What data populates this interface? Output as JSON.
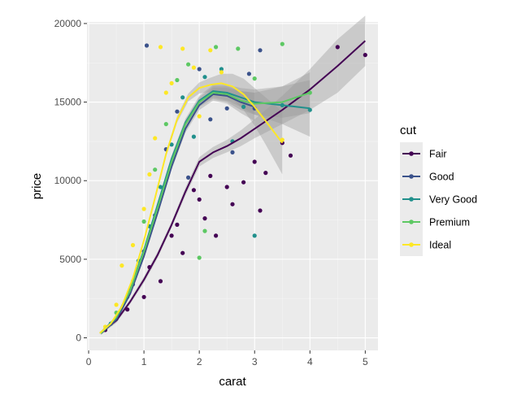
{
  "chart_data": {
    "type": "scatter",
    "title": "",
    "xlabel": "carat",
    "ylabel": "price",
    "xlim": [
      -0.03,
      5.23
    ],
    "ylim": [
      -800,
      20100
    ],
    "x_ticks": [
      0,
      1,
      2,
      3,
      4,
      5
    ],
    "y_ticks": [
      0,
      5000,
      10000,
      15000,
      20000
    ],
    "grid": true,
    "legend": {
      "title": "cut",
      "placement": "right"
    },
    "series": [
      {
        "name": "Fair",
        "color": "#440154",
        "smooth": [
          [
            0.25,
            420
          ],
          [
            0.5,
            1100
          ],
          [
            0.75,
            2300
          ],
          [
            1.0,
            3700
          ],
          [
            1.25,
            5300
          ],
          [
            1.5,
            7200
          ],
          [
            1.75,
            9300
          ],
          [
            2.0,
            11200
          ],
          [
            2.25,
            11800
          ],
          [
            2.5,
            12200
          ],
          [
            2.75,
            12700
          ],
          [
            3.0,
            13300
          ],
          [
            3.5,
            14500
          ],
          [
            4.0,
            15800
          ],
          [
            4.5,
            17300
          ],
          [
            5.0,
            18900
          ]
        ],
        "band": [
          [
            0.25,
            300,
            540
          ],
          [
            0.5,
            950,
            1250
          ],
          [
            0.75,
            2150,
            2450
          ],
          [
            1.0,
            3500,
            3900
          ],
          [
            1.25,
            5100,
            5500
          ],
          [
            1.5,
            7000,
            7400
          ],
          [
            1.75,
            9050,
            9550
          ],
          [
            2.0,
            10900,
            11500
          ],
          [
            2.25,
            11450,
            12150
          ],
          [
            2.5,
            11800,
            12600
          ],
          [
            2.75,
            12200,
            13200
          ],
          [
            3.0,
            12700,
            13900
          ],
          [
            3.5,
            13600,
            15400
          ],
          [
            4.0,
            14500,
            17100
          ],
          [
            4.5,
            15600,
            19000
          ],
          [
            5.0,
            17300,
            20500
          ]
        ],
        "points": [
          [
            0.3,
            500
          ],
          [
            0.7,
            1800
          ],
          [
            1.0,
            2600
          ],
          [
            1.1,
            4500
          ],
          [
            1.3,
            3600
          ],
          [
            1.5,
            6500
          ],
          [
            1.6,
            7200
          ],
          [
            1.7,
            5400
          ],
          [
            1.9,
            9400
          ],
          [
            2.0,
            8800
          ],
          [
            2.1,
            7600
          ],
          [
            2.2,
            10300
          ],
          [
            2.3,
            6500
          ],
          [
            2.5,
            9600
          ],
          [
            2.6,
            8500
          ],
          [
            2.8,
            9900
          ],
          [
            3.0,
            11200
          ],
          [
            3.1,
            8100
          ],
          [
            3.2,
            10500
          ],
          [
            3.5,
            12400
          ],
          [
            3.65,
            11600
          ],
          [
            4.5,
            18500
          ],
          [
            5.0,
            18000
          ]
        ]
      },
      {
        "name": "Good",
        "color": "#3b528b",
        "smooth": [
          [
            0.23,
            300
          ],
          [
            0.5,
            1150
          ],
          [
            0.75,
            2800
          ],
          [
            1.0,
            5200
          ],
          [
            1.25,
            8000
          ],
          [
            1.5,
            10900
          ],
          [
            1.75,
            13300
          ],
          [
            2.0,
            14800
          ],
          [
            2.25,
            15500
          ],
          [
            2.5,
            15400
          ],
          [
            2.75,
            15000
          ],
          [
            3.0,
            14700
          ]
        ],
        "band": [
          [
            0.23,
            200,
            400
          ],
          [
            0.5,
            1050,
            1250
          ],
          [
            0.75,
            2700,
            2900
          ],
          [
            1.0,
            5050,
            5350
          ],
          [
            1.25,
            7850,
            8150
          ],
          [
            1.5,
            10700,
            11100
          ],
          [
            1.75,
            13050,
            13550
          ],
          [
            2.0,
            14500,
            15100
          ],
          [
            2.25,
            15100,
            15900
          ],
          [
            2.5,
            14900,
            15900
          ],
          [
            2.75,
            14300,
            15700
          ],
          [
            3.0,
            13800,
            15600
          ]
        ],
        "points": [
          [
            0.5,
            1200
          ],
          [
            0.8,
            3400
          ],
          [
            1.0,
            5500
          ],
          [
            1.05,
            18600
          ],
          [
            1.2,
            7800
          ],
          [
            1.4,
            12000
          ],
          [
            1.6,
            14400
          ],
          [
            1.8,
            10200
          ],
          [
            2.0,
            17100
          ],
          [
            2.2,
            13900
          ],
          [
            2.5,
            14600
          ],
          [
            2.6,
            11800
          ],
          [
            2.9,
            16800
          ],
          [
            3.0,
            14600
          ],
          [
            3.1,
            18300
          ]
        ]
      },
      {
        "name": "Very Good",
        "color": "#21908c",
        "smooth": [
          [
            0.22,
            320
          ],
          [
            0.5,
            1300
          ],
          [
            0.75,
            3100
          ],
          [
            1.0,
            5600
          ],
          [
            1.25,
            8500
          ],
          [
            1.5,
            11400
          ],
          [
            1.75,
            13700
          ],
          [
            2.0,
            15100
          ],
          [
            2.25,
            15700
          ],
          [
            2.5,
            15600
          ],
          [
            2.75,
            15300
          ],
          [
            3.0,
            15000
          ],
          [
            3.5,
            14800
          ],
          [
            4.0,
            14600
          ]
        ],
        "band": [
          [
            0.22,
            220,
            420
          ],
          [
            0.5,
            1200,
            1400
          ],
          [
            0.75,
            3000,
            3200
          ],
          [
            1.0,
            5450,
            5750
          ],
          [
            1.25,
            8350,
            8650
          ],
          [
            1.5,
            11200,
            11600
          ],
          [
            1.75,
            13450,
            13950
          ],
          [
            2.0,
            14800,
            15400
          ],
          [
            2.25,
            15300,
            16100
          ],
          [
            2.5,
            15100,
            16100
          ],
          [
            2.75,
            14700,
            15900
          ],
          [
            3.0,
            14200,
            15800
          ],
          [
            3.5,
            13600,
            16000
          ],
          [
            4.0,
            12800,
            16400
          ]
        ],
        "points": [
          [
            0.4,
            900
          ],
          [
            0.7,
            2600
          ],
          [
            0.9,
            4900
          ],
          [
            1.1,
            7100
          ],
          [
            1.3,
            9600
          ],
          [
            1.5,
            12300
          ],
          [
            1.7,
            15300
          ],
          [
            1.9,
            12800
          ],
          [
            2.1,
            16600
          ],
          [
            2.4,
            17100
          ],
          [
            2.6,
            12500
          ],
          [
            2.8,
            14700
          ],
          [
            3.0,
            6500
          ],
          [
            3.5,
            14800
          ],
          [
            4.0,
            14500
          ]
        ]
      },
      {
        "name": "Premium",
        "color": "#5dc863",
        "smooth": [
          [
            0.22,
            280
          ],
          [
            0.5,
            1300
          ],
          [
            0.75,
            3000
          ],
          [
            1.0,
            5500
          ],
          [
            1.25,
            8300
          ],
          [
            1.5,
            11200
          ],
          [
            1.75,
            13600
          ],
          [
            2.0,
            15000
          ],
          [
            2.25,
            15600
          ],
          [
            2.5,
            15500
          ],
          [
            2.75,
            15100
          ],
          [
            3.0,
            14900
          ],
          [
            3.5,
            15000
          ],
          [
            4.0,
            15600
          ]
        ],
        "band": [
          [
            0.22,
            180,
            380
          ],
          [
            0.5,
            1200,
            1400
          ],
          [
            0.75,
            2900,
            3100
          ],
          [
            1.0,
            5350,
            5650
          ],
          [
            1.25,
            8150,
            8450
          ],
          [
            1.5,
            11000,
            11400
          ],
          [
            1.75,
            13350,
            13850
          ],
          [
            2.0,
            14700,
            15300
          ],
          [
            2.25,
            15200,
            16000
          ],
          [
            2.5,
            15000,
            16000
          ],
          [
            2.75,
            14500,
            15700
          ],
          [
            3.0,
            14200,
            15600
          ],
          [
            3.5,
            14000,
            16000
          ],
          [
            4.0,
            14300,
            16900
          ]
        ],
        "points": [
          [
            0.5,
            1600
          ],
          [
            0.8,
            3600
          ],
          [
            1.0,
            7400
          ],
          [
            1.2,
            10700
          ],
          [
            1.4,
            13600
          ],
          [
            1.6,
            16400
          ],
          [
            1.8,
            17400
          ],
          [
            2.0,
            5100
          ],
          [
            2.1,
            6800
          ],
          [
            2.3,
            18500
          ],
          [
            2.7,
            18400
          ],
          [
            3.0,
            16500
          ],
          [
            3.5,
            18700
          ],
          [
            4.0,
            15600
          ]
        ]
      },
      {
        "name": "Ideal",
        "color": "#fde725",
        "smooth": [
          [
            0.2,
            300
          ],
          [
            0.4,
            900
          ],
          [
            0.6,
            2000
          ],
          [
            0.8,
            3800
          ],
          [
            1.0,
            6200
          ],
          [
            1.2,
            8900
          ],
          [
            1.4,
            11700
          ],
          [
            1.6,
            13900
          ],
          [
            1.8,
            15300
          ],
          [
            2.0,
            15900
          ],
          [
            2.2,
            16100
          ],
          [
            2.4,
            16200
          ],
          [
            2.6,
            16000
          ],
          [
            2.8,
            15500
          ],
          [
            3.0,
            14700
          ],
          [
            3.2,
            13800
          ],
          [
            3.5,
            12400
          ]
        ],
        "band": [
          [
            0.2,
            220,
            380
          ],
          [
            0.4,
            820,
            980
          ],
          [
            0.6,
            1920,
            2080
          ],
          [
            0.8,
            3700,
            3900
          ],
          [
            1.0,
            6080,
            6320
          ],
          [
            1.2,
            8760,
            9040
          ],
          [
            1.4,
            11540,
            11860
          ],
          [
            1.6,
            13700,
            14100
          ],
          [
            1.8,
            15050,
            15550
          ],
          [
            2.0,
            15550,
            16250
          ],
          [
            2.2,
            15650,
            16550
          ],
          [
            2.4,
            15600,
            16800
          ],
          [
            2.6,
            15200,
            16800
          ],
          [
            2.8,
            14500,
            16500
          ],
          [
            3.0,
            13500,
            15900
          ],
          [
            3.2,
            12300,
            15300
          ],
          [
            3.5,
            10400,
            14400
          ]
        ],
        "points": [
          [
            0.3,
            700
          ],
          [
            0.5,
            2100
          ],
          [
            0.6,
            4600
          ],
          [
            0.8,
            5900
          ],
          [
            1.0,
            8200
          ],
          [
            1.1,
            10400
          ],
          [
            1.2,
            12700
          ],
          [
            1.3,
            18500
          ],
          [
            1.4,
            15600
          ],
          [
            1.5,
            16200
          ],
          [
            1.7,
            18400
          ],
          [
            1.9,
            17200
          ],
          [
            2.0,
            14100
          ],
          [
            2.2,
            18300
          ],
          [
            2.4,
            16900
          ],
          [
            3.5,
            12600
          ]
        ]
      }
    ]
  }
}
